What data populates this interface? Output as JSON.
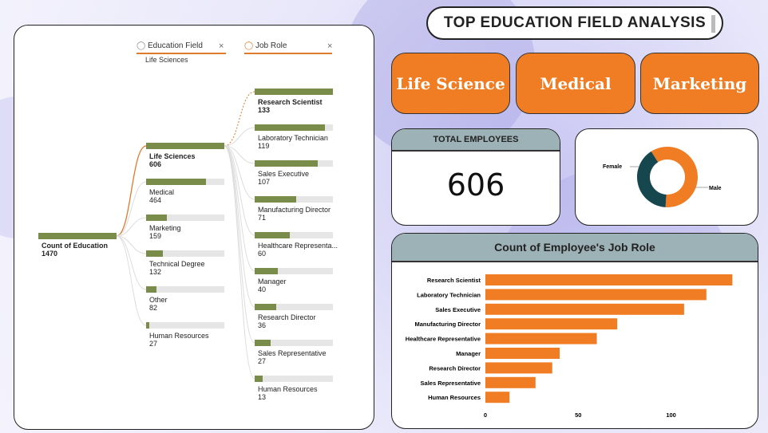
{
  "decomposition": {
    "headers": {
      "field1": "Education Field",
      "field2": "Job Role",
      "selected_filter": "Life Sciences"
    },
    "root": {
      "label": "Count of Education",
      "value": "1470"
    },
    "education_fields": [
      {
        "label": "Life Sciences",
        "value": "606",
        "amount": 606
      },
      {
        "label": "Medical",
        "value": "464",
        "amount": 464
      },
      {
        "label": "Marketing",
        "value": "159",
        "amount": 159
      },
      {
        "label": "Technical Degree",
        "value": "132",
        "amount": 132
      },
      {
        "label": "Other",
        "value": "82",
        "amount": 82
      },
      {
        "label": "Human Resources",
        "value": "27",
        "amount": 27
      }
    ],
    "job_roles": [
      {
        "label": "Research Scientist",
        "value": "133",
        "amount": 133
      },
      {
        "label": "Laboratory Technician",
        "value": "119",
        "amount": 119
      },
      {
        "label": "Sales Executive",
        "value": "107",
        "amount": 107
      },
      {
        "label": "Manufacturing Director",
        "value": "71",
        "amount": 71
      },
      {
        "label": "Healthcare Representa...",
        "value": "60",
        "amount": 60
      },
      {
        "label": "Manager",
        "value": "40",
        "amount": 40
      },
      {
        "label": "Research Director",
        "value": "36",
        "amount": 36
      },
      {
        "label": "Sales Representative",
        "value": "27",
        "amount": 27
      },
      {
        "label": "Human Resources",
        "value": "13",
        "amount": 13
      }
    ]
  },
  "title": "TOP EDUCATION FIELD ANALYSIS",
  "field_buttons": [
    "Life Science",
    "Medical",
    "Marketing"
  ],
  "kpi": {
    "label": "TOTAL EMPLOYEES",
    "value": "606"
  },
  "donut": {
    "labels": [
      "Female",
      "Male"
    ],
    "fractions": [
      0.4,
      0.6
    ],
    "colors": [
      "#16474f",
      "#f07d24"
    ]
  },
  "colors": {
    "accent": "#f07d24",
    "tree_bar": "#7a8c4a",
    "header_teal": "#9db2b6"
  },
  "chart_data": {
    "type": "bar",
    "orientation": "horizontal",
    "title": "Count of Employee's Job Role",
    "categories": [
      "Research Scientist",
      "Laboratory Technician",
      "Sales Executive",
      "Manufacturing Director",
      "Healthcare Representative",
      "Manager",
      "Research Director",
      "Sales Representative",
      "Human Resources"
    ],
    "values": [
      133,
      119,
      107,
      71,
      60,
      40,
      36,
      27,
      13
    ],
    "xticks": [
      "0",
      "50",
      "100"
    ],
    "xlim": [
      0,
      138
    ],
    "grid": false,
    "color": "#f07d24"
  }
}
